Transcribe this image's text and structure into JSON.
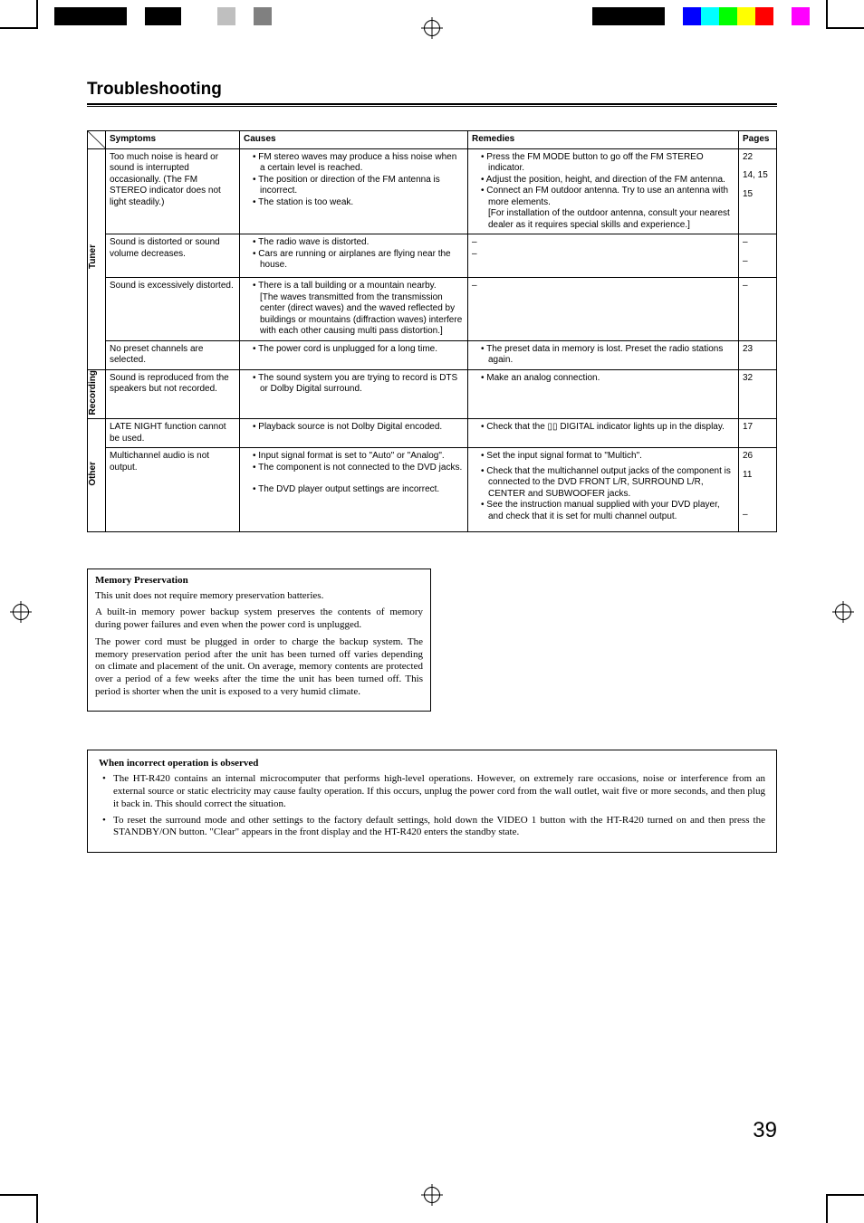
{
  "page_number": "39",
  "title": "Troubleshooting",
  "headers": {
    "symptoms": "Symptoms",
    "causes": "Causes",
    "remedies": "Remedies",
    "pages": "Pages"
  },
  "categories": {
    "tuner": "Tuner",
    "recording": "Recording",
    "other": "Other"
  },
  "rows": {
    "r1": {
      "symptom": "Too much noise is heard or sound is interrupted occasionally. (The FM STEREO indicator does not light steadily.)",
      "cause1": "FM stereo waves may produce a hiss noise when a certain level is reached.",
      "cause2": "The position or direction of the FM antenna is incorrect.",
      "cause3": "The station is too weak.",
      "rem1": "Press the FM MODE button to go off the FM STEREO indicator.",
      "rem2": "Adjust the position, height, and direction of the FM antenna.",
      "rem3": "Connect an FM outdoor antenna. Try to use an antenna with more elements.",
      "rem3b": "[For installation of the outdoor antenna, consult your nearest dealer as it requires special skills and experience.]",
      "p1": "22",
      "p2": "14, 15",
      "p3": "15"
    },
    "r2": {
      "symptom": "Sound is distorted or sound volume decreases.",
      "cause1": "The radio wave is distorted.",
      "cause2": "Cars are running or airplanes are flying near the house.",
      "rem1": "–",
      "rem2": "–",
      "p1": "–",
      "p2": "–"
    },
    "r3": {
      "symptom": "Sound is excessively distorted.",
      "cause1": "There is a tall building or a mountain nearby.",
      "cause1b": "[The waves transmitted from the transmission center (direct waves) and the waved reflected by buildings or mountains (diffraction waves) interfere with each other causing multi pass distortion.]",
      "rem1": "–",
      "p1": "–"
    },
    "r4": {
      "symptom": "No preset channels are selected.",
      "cause1": "The power cord is unplugged for a long time.",
      "rem1": "The preset data in memory is lost. Preset the radio stations again.",
      "p1": "23"
    },
    "r5": {
      "symptom": "Sound is reproduced from the speakers but not recorded.",
      "cause1": "The sound system you are trying to record is DTS or Dolby Digital surround.",
      "rem1": "Make an analog connection.",
      "p1": "32"
    },
    "r6": {
      "symptom": "LATE NIGHT function cannot be used.",
      "cause1": "Playback source is not Dolby Digital encoded.",
      "rem1": "Check that the ▯▯ DIGITAL indicator lights up in the display.",
      "p1": "17"
    },
    "r7": {
      "symptom": "Multichannel audio is not output.",
      "cause1": "Input signal format is set to \"Auto\" or \"Analog\".",
      "cause2": "The component is not connected to the DVD jacks.",
      "cause3": "The DVD player output settings are incorrect.",
      "rem1": "Set the input signal format to \"Multich\".",
      "rem2": "Check that the multichannel output jacks of the component is connected to the DVD FRONT L/R, SURROUND L/R, CENTER and SUBWOOFER jacks.",
      "rem3": "See the instruction manual supplied with your DVD player, and check that it is set for multi channel output.",
      "p1": "26",
      "p2": "11",
      "p3": "–"
    }
  },
  "memory": {
    "title": "Memory Preservation",
    "p1": "This unit does not require memory preservation batteries.",
    "p2": "A built-in memory power backup system preserves the contents of memory during power failures and even when the power cord is unplugged.",
    "p3": "The power cord must be plugged in order to charge the backup system. The memory preservation period after the unit has been turned off varies depending on climate and placement of the unit. On average, memory contents are protected over a period of a few weeks after the time the unit has been turned off. This period is shorter when the unit is exposed to a very humid climate."
  },
  "incorrect": {
    "title": "When incorrect operation is observed",
    "b1": "The HT-R420 contains an internal microcomputer that performs high-level operations. However, on extremely rare occasions, noise or interference from an external source or static electricity may cause faulty operation. If this occurs, unplug the power cord from the wall outlet, wait five or more seconds, and then plug it back in. This should correct the situation.",
    "b2": "To reset the surround mode and other settings to the factory default settings, hold down the VIDEO 1 button with the HT-R420 turned on and then press the STANDBY/ON button. \"Clear\" appears in the front display and the HT-R420 enters the standby state."
  },
  "colorbar_left": [
    "#000000",
    "#000000",
    "#000000",
    "#000000",
    "#ffffff",
    "#000000",
    "#000000",
    "#ffffff",
    "#ffffff",
    "#bfbfbf",
    "#ffffff",
    "#808080"
  ],
  "colorbar_right": [
    "#ff00ff",
    "#ffffff",
    "#ff0000",
    "#ffff00",
    "#00ff00",
    "#00ffff",
    "#0000ff",
    "#ffffff",
    "#000000",
    "#000000",
    "#000000",
    "#000000"
  ]
}
